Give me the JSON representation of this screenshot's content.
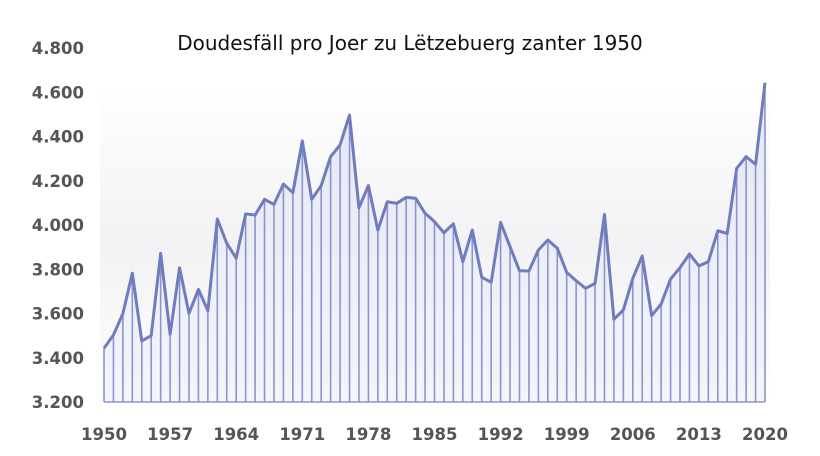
{
  "chart_data": {
    "type": "area",
    "title": "Doudesfäll pro Joer zu Lëtzebuerg zanter 1950",
    "xlabel": "",
    "ylabel": "",
    "x_start": 1950,
    "x_end": 2020,
    "xticks": [
      "1950",
      "1957",
      "1964",
      "1971",
      "1978",
      "1985",
      "1992",
      "1999",
      "2006",
      "2013",
      "2020"
    ],
    "ylim": [
      3200,
      4800
    ],
    "yticks": [
      "3.200",
      "3.400",
      "3.600",
      "3.800",
      "4.000",
      "4.200",
      "4.400",
      "4.600",
      "4.800"
    ],
    "grid": false,
    "series": [
      {
        "name": "Doudesfäll",
        "color": "#6f7cbd",
        "values": [
          3443,
          3503,
          3600,
          3782,
          3476,
          3500,
          3872,
          3506,
          3807,
          3601,
          3709,
          3613,
          4027,
          3917,
          3850,
          4050,
          4045,
          4116,
          4093,
          4185,
          4146,
          4380,
          4116,
          4178,
          4309,
          4362,
          4497,
          4078,
          4178,
          3977,
          4105,
          4098,
          4125,
          4121,
          4053,
          4015,
          3965,
          4005,
          3834,
          3977,
          3764,
          3741,
          4012,
          3902,
          3793,
          3792,
          3887,
          3932,
          3895,
          3786,
          3748,
          3714,
          3736,
          4048,
          3574,
          3616,
          3759,
          3860,
          3590,
          3643,
          3756,
          3807,
          3869,
          3815,
          3834,
          3974,
          3962,
          4256,
          4309,
          4274,
          4643
        ]
      }
    ]
  }
}
